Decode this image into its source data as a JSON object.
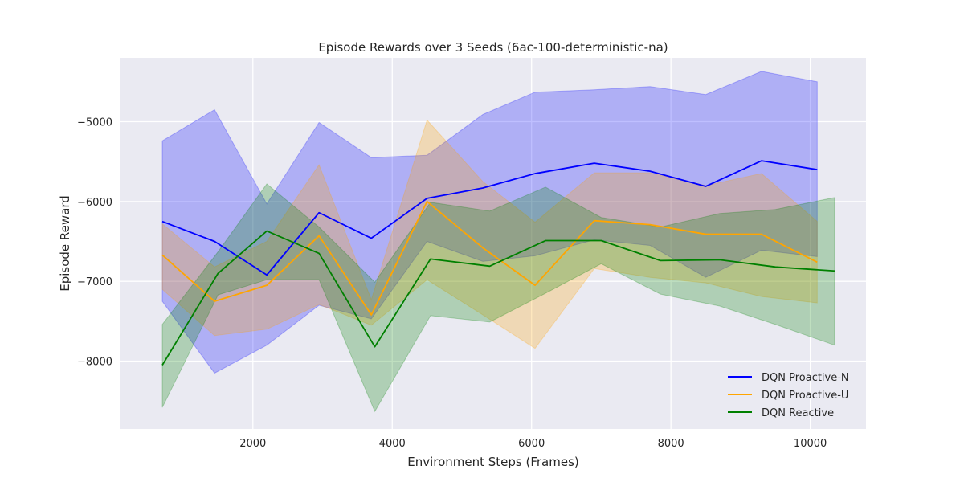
{
  "chart_data": {
    "type": "line",
    "title": "Episode Rewards over 3 Seeds (6ac-100-deterministic-na)",
    "xlabel": "Environment Steps (Frames)",
    "ylabel": "Episode Reward",
    "xlim": [
      100,
      10800
    ],
    "ylim": [
      -8850,
      -4200
    ],
    "xticks": [
      2000,
      4000,
      6000,
      8000,
      10000
    ],
    "yticks": [
      -8000,
      -7000,
      -6000,
      -5000
    ],
    "xtick_labels": [
      "2000",
      "4000",
      "6000",
      "8000",
      "10000"
    ],
    "ytick_labels": [
      "−8000",
      "−7000",
      "−6000",
      "−5000"
    ],
    "grid": true,
    "legend_position": "lower-right",
    "band_opacity": 0.25,
    "series": [
      {
        "name": "DQN Proactive-N",
        "color": "#0000ff",
        "x": [
          700,
          1450,
          2200,
          2950,
          3700,
          4500,
          5300,
          6050,
          6900,
          7700,
          8500,
          9300,
          10100
        ],
        "y": [
          -6250,
          -6500,
          -6920,
          -6140,
          -6460,
          -5960,
          -5830,
          -5650,
          -5520,
          -5620,
          -5810,
          -5490,
          -5600
        ],
        "lower": [
          -7250,
          -8150,
          -7800,
          -7300,
          -7470,
          -6500,
          -6750,
          -6680,
          -6480,
          -6550,
          -6950,
          -6610,
          -6690
        ],
        "upper": [
          -5240,
          -4850,
          -6030,
          -5010,
          -5450,
          -5420,
          -4910,
          -4630,
          -4600,
          -4560,
          -4660,
          -4370,
          -4500
        ]
      },
      {
        "name": "DQN Proactive-U",
        "color": "#ffa500",
        "x": [
          700,
          1450,
          2200,
          2950,
          3700,
          4500,
          5300,
          6050,
          6900,
          7700,
          8500,
          9300,
          10100
        ],
        "y": [
          -6670,
          -7250,
          -7050,
          -6430,
          -7420,
          -6000,
          -6580,
          -7050,
          -6240,
          -6290,
          -6410,
          -6410,
          -6760
        ],
        "lower": [
          -7100,
          -7680,
          -7600,
          -7290,
          -7550,
          -6980,
          -7420,
          -7840,
          -6840,
          -6950,
          -7020,
          -7190,
          -7270
        ],
        "upper": [
          -6280,
          -6820,
          -6500,
          -5540,
          -7230,
          -4980,
          -5750,
          -6260,
          -5640,
          -5640,
          -5800,
          -5650,
          -6250
        ]
      },
      {
        "name": "DQN Reactive",
        "color": "#008000",
        "x": [
          700,
          1500,
          2200,
          2950,
          3750,
          4550,
          5400,
          6200,
          7000,
          7850,
          8700,
          9500,
          10350
        ],
        "y": [
          -8050,
          -6900,
          -6370,
          -6650,
          -7820,
          -6720,
          -6810,
          -6490,
          -6490,
          -6740,
          -6730,
          -6820,
          -6870
        ],
        "lower": [
          -8580,
          -7170,
          -6980,
          -6980,
          -8630,
          -7430,
          -7510,
          -7150,
          -6780,
          -7160,
          -7310,
          -7540,
          -7800
        ],
        "upper": [
          -7540,
          -6630,
          -5780,
          -6320,
          -7010,
          -6010,
          -6120,
          -5820,
          -6200,
          -6320,
          -6150,
          -6100,
          -5950
        ]
      }
    ]
  }
}
